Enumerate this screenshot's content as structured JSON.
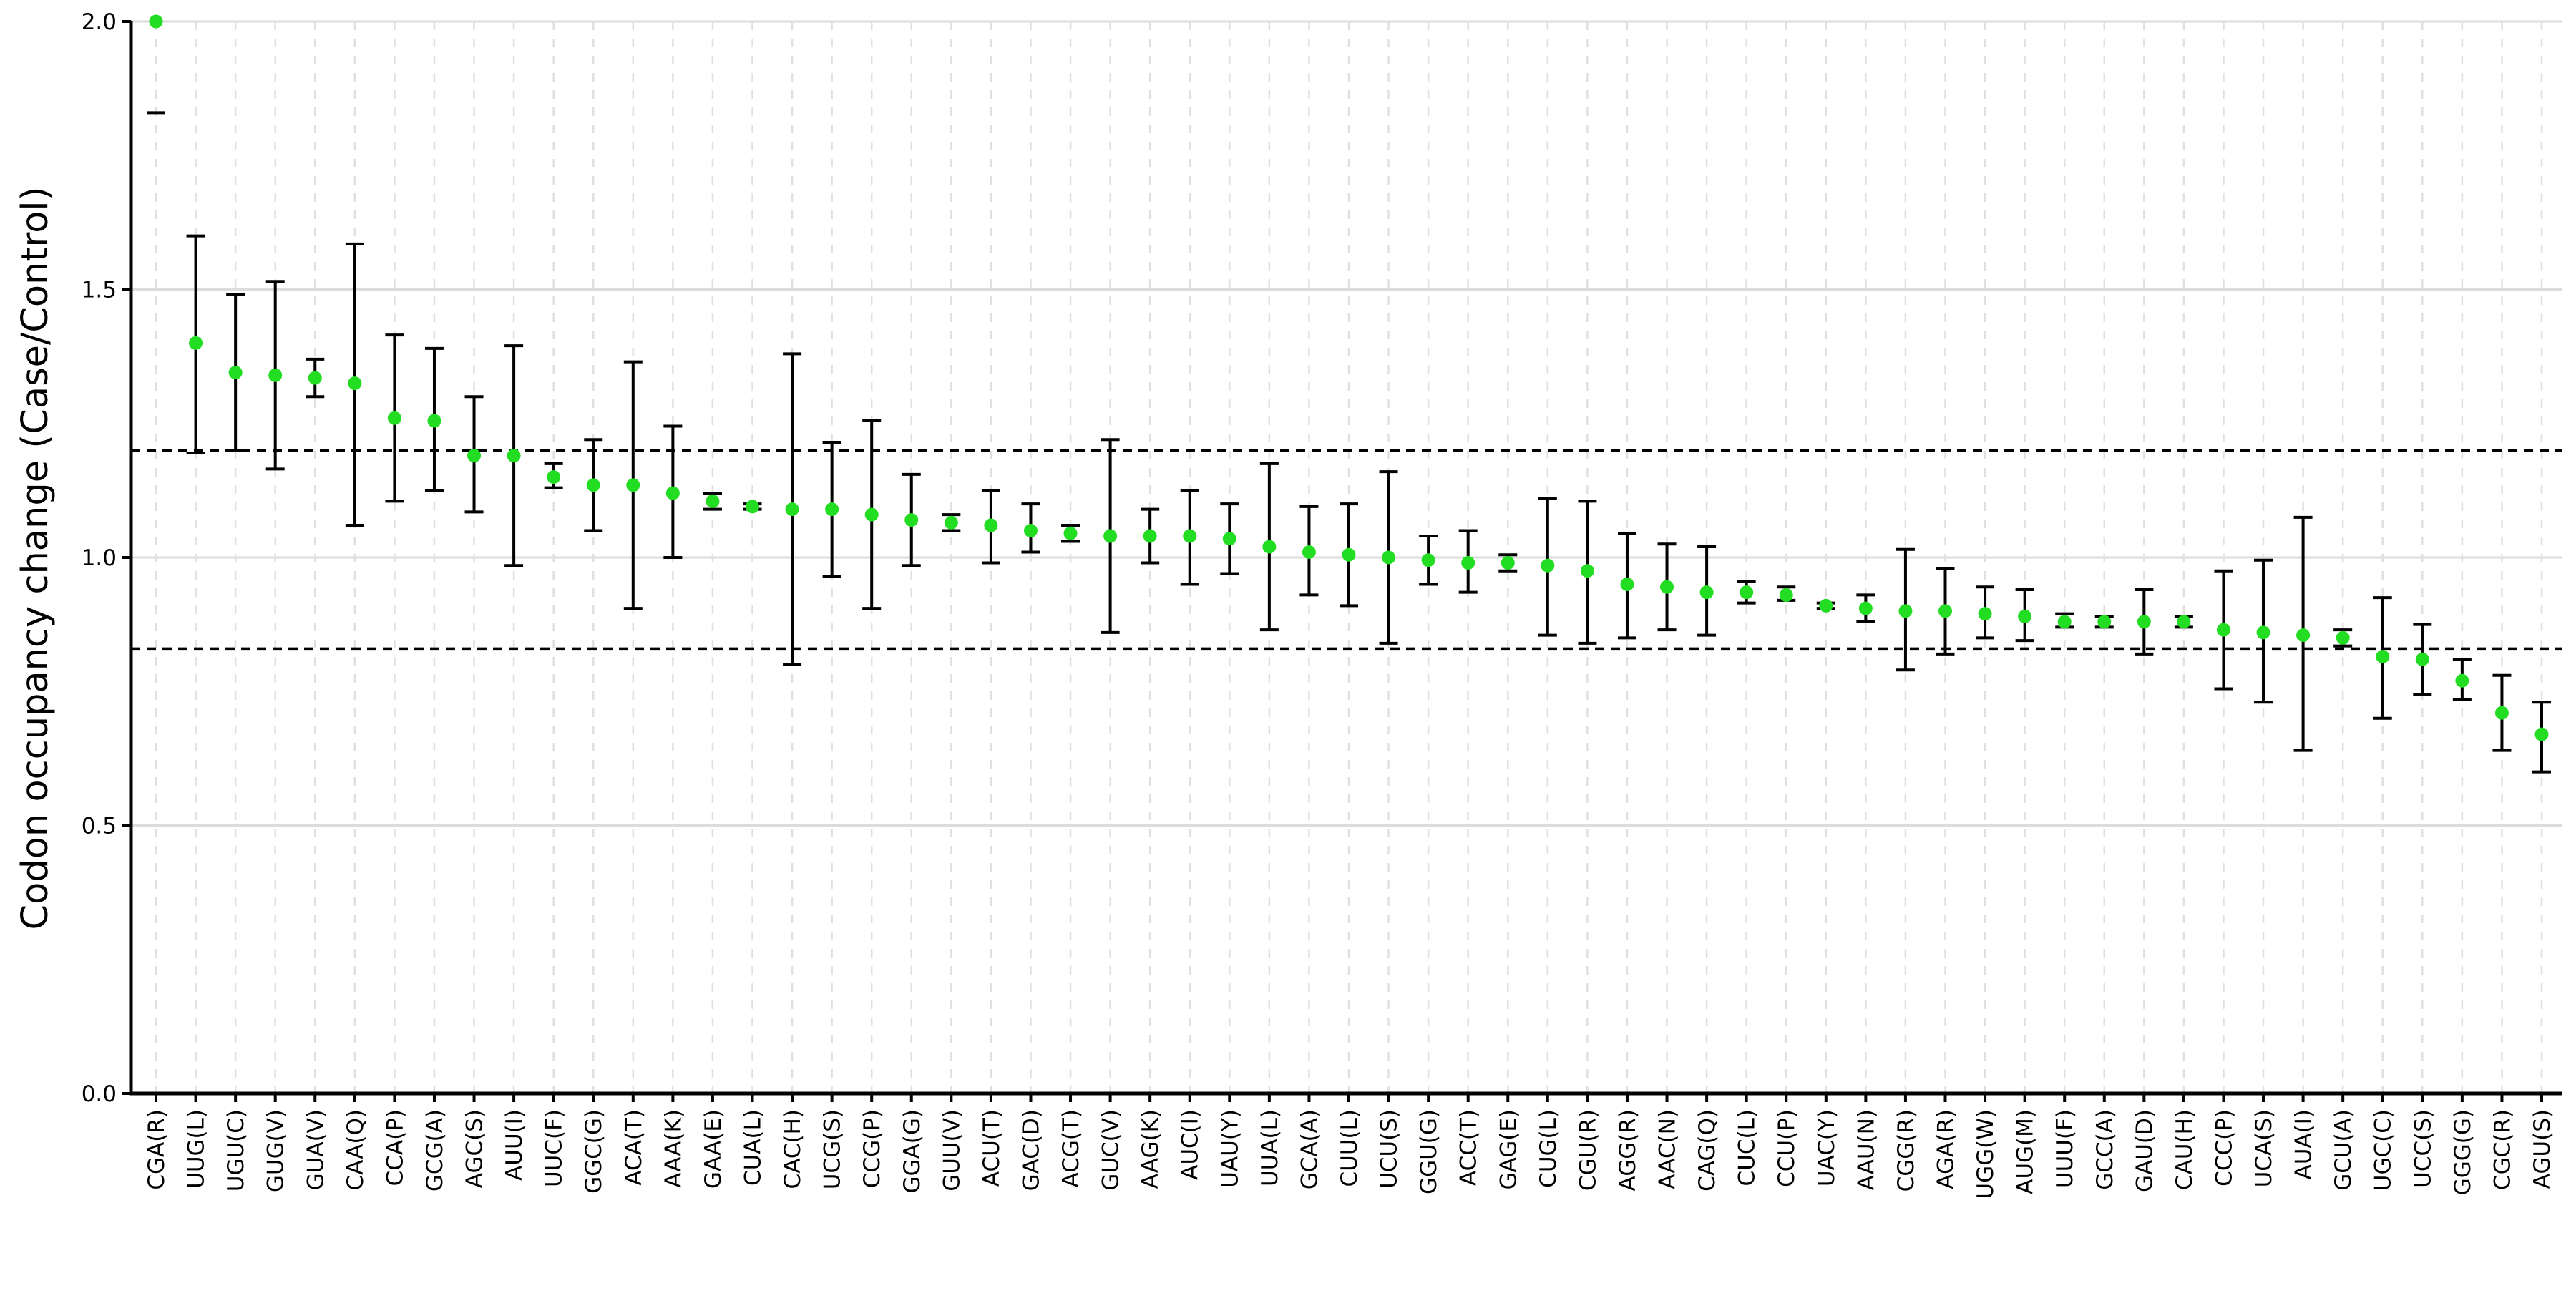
{
  "chart_data": {
    "type": "scatter",
    "title": "",
    "xlabel": "",
    "ylabel": "Codon occupancy change (Case/Control)",
    "ylim": [
      0.0,
      2.0
    ],
    "yticks": [
      "0.0",
      "0.5",
      "1.0",
      "1.5",
      "2.0"
    ],
    "grid": true,
    "reference_lines": [
      1.2,
      0.83
    ],
    "colors": {
      "point": "#22dd22",
      "errorbar": "#000000",
      "grid": "#dcdcdc",
      "reference": "#000000"
    },
    "categories": [
      "CGA(R)",
      "UUG(L)",
      "UGU(C)",
      "GUG(V)",
      "GUA(V)",
      "CAA(Q)",
      "CCA(P)",
      "GCG(A)",
      "AGC(S)",
      "AUU(I)",
      "UUC(F)",
      "GGC(G)",
      "ACA(T)",
      "AAA(K)",
      "GAA(E)",
      "CUA(L)",
      "CAC(H)",
      "UCG(S)",
      "CCG(P)",
      "GGA(G)",
      "GUU(V)",
      "ACU(T)",
      "GAC(D)",
      "ACG(T)",
      "GUC(V)",
      "AAG(K)",
      "AUC(I)",
      "UAU(Y)",
      "UUA(L)",
      "GCA(A)",
      "CUU(L)",
      "UCU(S)",
      "GGU(G)",
      "ACC(T)",
      "GAG(E)",
      "CUG(L)",
      "CGU(R)",
      "AGG(R)",
      "AAC(N)",
      "CAG(Q)",
      "CUC(L)",
      "CCU(P)",
      "UAC(Y)",
      "AAU(N)",
      "CGG(R)",
      "AGA(R)",
      "UGG(W)",
      "AUG(M)",
      "UUU(F)",
      "GCC(A)",
      "GAU(D)",
      "CAU(H)",
      "CCC(P)",
      "UCA(S)",
      "AUA(I)",
      "GCU(A)",
      "UGC(C)",
      "UCC(S)",
      "GGG(G)",
      "CGC(R)",
      "AGU(S)"
    ],
    "values": [
      2.0,
      1.4,
      1.345,
      1.34,
      1.335,
      1.325,
      1.26,
      1.255,
      1.19,
      1.19,
      1.15,
      1.135,
      1.135,
      1.12,
      1.105,
      1.095,
      1.09,
      1.09,
      1.08,
      1.07,
      1.065,
      1.06,
      1.05,
      1.045,
      1.04,
      1.04,
      1.04,
      1.035,
      1.02,
      1.01,
      1.005,
      1.0,
      0.995,
      0.99,
      0.99,
      0.985,
      0.975,
      0.95,
      0.945,
      0.935,
      0.935,
      0.93,
      0.91,
      0.905,
      0.9,
      0.9,
      0.895,
      0.89,
      0.88,
      0.88,
      0.88,
      0.88,
      0.865,
      0.86,
      0.855,
      0.85,
      0.815,
      0.81,
      0.77,
      0.71,
      0.67
    ],
    "error_low": [
      1.83,
      1.195,
      1.2,
      1.165,
      1.3,
      1.06,
      1.105,
      1.125,
      1.085,
      0.985,
      1.13,
      1.05,
      0.905,
      1.0,
      1.09,
      1.09,
      0.8,
      0.965,
      0.905,
      0.985,
      1.05,
      0.99,
      1.01,
      1.03,
      0.86,
      0.99,
      0.95,
      0.97,
      0.865,
      0.93,
      0.91,
      0.84,
      0.95,
      0.935,
      0.975,
      0.855,
      0.84,
      0.85,
      0.865,
      0.855,
      0.915,
      0.92,
      0.905,
      0.88,
      0.79,
      0.82,
      0.85,
      0.845,
      0.87,
      0.87,
      0.82,
      0.87,
      0.755,
      0.73,
      0.64,
      0.835,
      0.7,
      0.745,
      0.735,
      0.64,
      0.6
    ],
    "error_high": [
      null,
      1.6,
      1.49,
      1.515,
      1.37,
      1.585,
      1.415,
      1.39,
      1.3,
      1.395,
      1.175,
      1.22,
      1.365,
      1.245,
      1.12,
      1.1,
      1.38,
      1.215,
      1.255,
      1.155,
      1.08,
      1.125,
      1.1,
      1.06,
      1.22,
      1.09,
      1.125,
      1.1,
      1.175,
      1.095,
      1.1,
      1.16,
      1.04,
      1.05,
      1.005,
      1.11,
      1.105,
      1.045,
      1.025,
      1.02,
      0.955,
      0.945,
      0.915,
      0.93,
      1.015,
      0.98,
      0.945,
      0.94,
      0.895,
      0.89,
      0.94,
      0.89,
      0.975,
      0.995,
      1.075,
      0.865,
      0.925,
      0.875,
      0.81,
      0.78,
      0.73
    ]
  }
}
